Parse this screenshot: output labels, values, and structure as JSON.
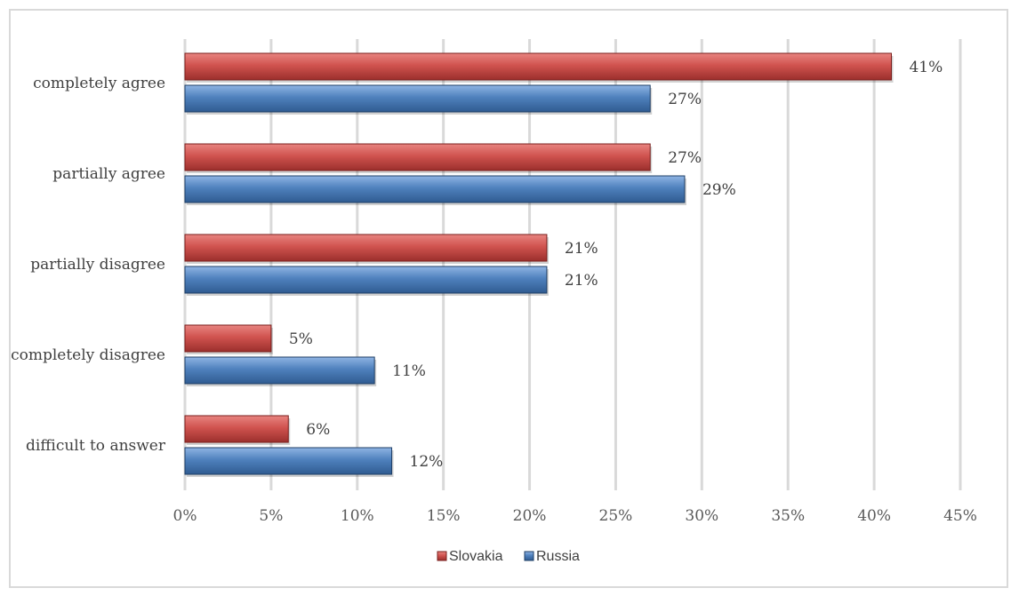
{
  "chart_data": {
    "type": "bar",
    "orientation": "horizontal",
    "categories": [
      "completely agree",
      "partially  agree",
      "partially disagree",
      "completely disagree",
      "difficult to answer"
    ],
    "series": [
      {
        "name": "Slovakia",
        "values": [
          41,
          27,
          21,
          5,
          6
        ],
        "color": "#c0504d"
      },
      {
        "name": "Russia",
        "values": [
          27,
          29,
          21,
          11,
          12
        ],
        "color": "#4f81bd"
      }
    ],
    "xlim": [
      0,
      45
    ],
    "xticks": [
      0,
      5,
      10,
      15,
      20,
      25,
      30,
      35,
      40,
      45
    ],
    "value_suffix": "%",
    "grid": true,
    "legend_position": "bottom",
    "xlabel": "",
    "ylabel": ""
  }
}
